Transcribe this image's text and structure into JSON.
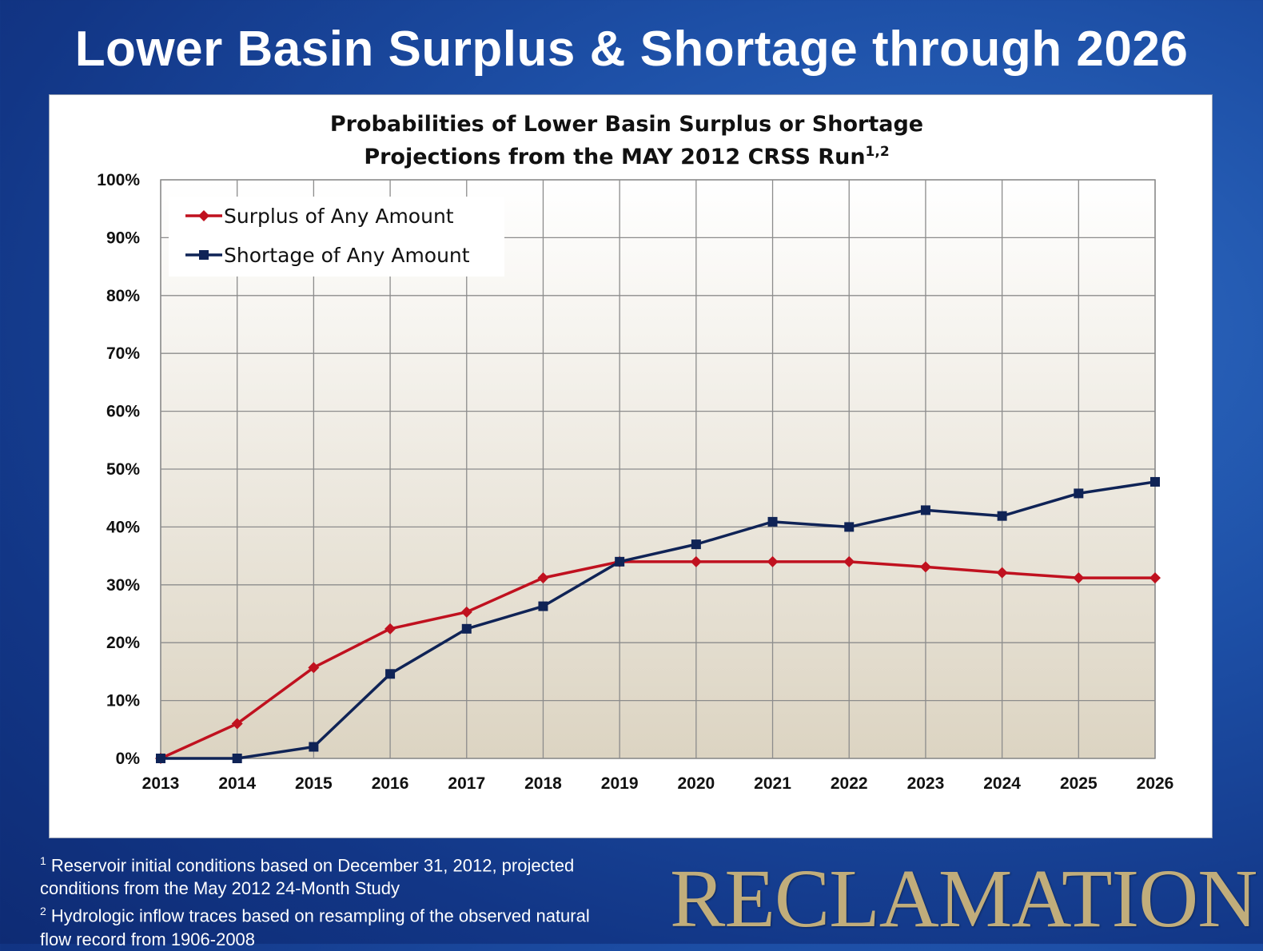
{
  "slide": {
    "title": "Lower Basin Surplus & Shortage through 2026",
    "footnotes": [
      {
        "mark": "1",
        "lines": [
          "Reservoir initial conditions based on December 31, 2012, projected",
          "conditions from the May 2012 24-Month Study"
        ]
      },
      {
        "mark": "2",
        "lines": [
          "Hydrologic inflow traces based on resampling of the observed natural",
          "flow record from 1906-2008"
        ]
      }
    ],
    "logo_text": "RECLAMATION"
  },
  "chart_data": {
    "type": "line",
    "title": "Probabilities of Lower Basin Surplus or Shortage",
    "subtitle": "Projections from the MAY 2012 CRSS Run",
    "subtitle_superscript": "1,2",
    "x": [
      "2013",
      "2014",
      "2015",
      "2016",
      "2017",
      "2018",
      "2019",
      "2020",
      "2021",
      "2022",
      "2023",
      "2024",
      "2025",
      "2026"
    ],
    "ylim": [
      0,
      100
    ],
    "yticks": [
      "0%",
      "10%",
      "20%",
      "30%",
      "40%",
      "50%",
      "60%",
      "70%",
      "80%",
      "90%",
      "100%"
    ],
    "grid": true,
    "legend_position": "top-left",
    "series": [
      {
        "name": "Surplus of Any Amount",
        "color": "#c0111f",
        "marker": "diamond",
        "values": [
          0,
          6,
          15.7,
          22.4,
          25.3,
          31.2,
          34,
          34,
          34,
          34,
          33.1,
          32.1,
          31.2,
          31.2
        ]
      },
      {
        "name": "Shortage of Any Amount",
        "color": "#0f2356",
        "marker": "square",
        "values": [
          0,
          0,
          2,
          14.6,
          22.4,
          26.3,
          34,
          37,
          40.9,
          40,
          42.9,
          41.9,
          45.8,
          47.8
        ]
      }
    ]
  }
}
